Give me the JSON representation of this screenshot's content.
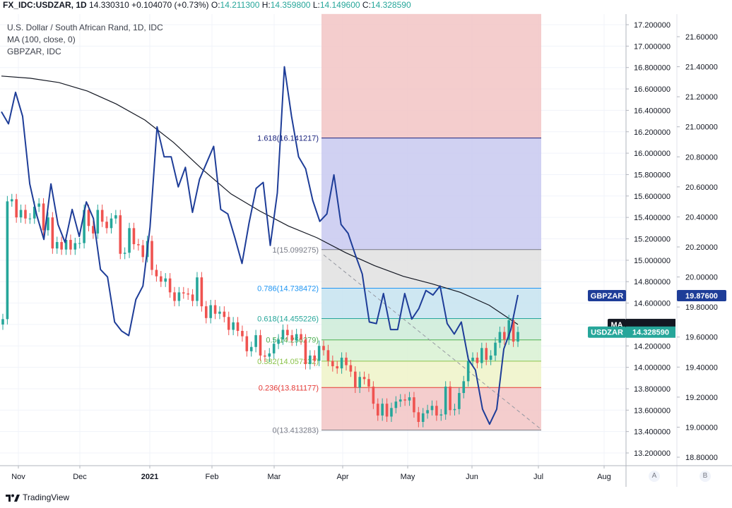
{
  "header": {
    "symbol": "FX_IDC:USDZAR, 1D",
    "last": "14.330310",
    "change": "+0.104070 (+0.73%)",
    "o_label": "O:",
    "o_value": "14.211300",
    "h_label": "H:",
    "h_value": "14.359800",
    "l_label": "L:",
    "l_value": "14.149600",
    "c_label": "C:",
    "c_value": "14.328590"
  },
  "legend": {
    "line1": "U.S. Dollar / South African Rand, 1D, IDC",
    "line2": "MA (100, close, 0)",
    "line3": "GBPZAR, IDC"
  },
  "footer": {
    "brand": "TradingView"
  },
  "scale_buttons": {
    "a": "A",
    "b": "B"
  },
  "colors": {
    "up": "#26a69a",
    "down": "#ef5350",
    "ma": "#131722",
    "gbpzar": "#1e3d98",
    "usdzar_label": "#26a69a",
    "gbpzar_label": "#1e3d98",
    "ma_label": "#131722"
  },
  "chart_data": {
    "type": "line",
    "title": "U.S. Dollar / South African Rand, 1D, IDC",
    "x_ticks": [
      "Nov",
      "Dec",
      "2021",
      "Feb",
      "Mar",
      "Apr",
      "May",
      "Jun",
      "Jul",
      "Aug"
    ],
    "axis_left": {
      "name": "USDZAR",
      "ylim": [
        13.1,
        17.3
      ],
      "ticks": [
        "17.200000",
        "17.000000",
        "16.800000",
        "16.600000",
        "16.400000",
        "16.200000",
        "16.000000",
        "15.800000",
        "15.600000",
        "15.400000",
        "15.200000",
        "15.000000",
        "14.800000",
        "14.600000",
        "14.400000",
        "14.200000",
        "14.000000",
        "13.800000",
        "13.600000",
        "13.400000",
        "13.200000"
      ]
    },
    "axis_right": {
      "name": "GBPZAR",
      "ylim": [
        18.75,
        21.7
      ],
      "ticks": [
        "21.60000",
        "21.40000",
        "21.20000",
        "21.00000",
        "20.80000",
        "20.60000",
        "20.40000",
        "20.20000",
        "20.00000",
        "19.80000",
        "19.60000",
        "19.40000",
        "19.20000",
        "19.00000",
        "18.80000"
      ]
    },
    "price_labels": [
      {
        "name": "GBPZAR",
        "value": "19.87600",
        "axis": "right"
      },
      {
        "name": "MA",
        "value": "",
        "axis": "left"
      },
      {
        "name": "USDZAR",
        "value": "14.328590",
        "axis": "left"
      }
    ],
    "fib_levels": [
      {
        "label": "0(13.413283)",
        "value": 13.413283,
        "line": "#787b86",
        "fill": "#f2c4c4"
      },
      {
        "label": "0.236(13.811177)",
        "value": 13.811177,
        "line": "#e53935",
        "fill": "#eef3c8"
      },
      {
        "label": "0.382(14.057332)",
        "value": 14.057332,
        "line": "#8bc34a",
        "fill": "#d8f1d2"
      },
      {
        "label": "0.5(14.256279)",
        "value": 14.256279,
        "line": "#4caf50",
        "fill": "#cdebd8"
      },
      {
        "label": "0.618(14.455226)",
        "value": 14.455226,
        "line": "#26a69a",
        "fill": "#c6e3f0"
      },
      {
        "label": "0.786(14.738472)",
        "value": 14.738472,
        "line": "#2196f3",
        "fill": "#e0e0e0"
      },
      {
        "label": "1(15.099275)",
        "value": 15.099275,
        "line": "#787b86",
        "fill": "#c8c9f0"
      },
      {
        "label": "1.618(16.141217)",
        "value": 16.141217,
        "line": "#1a237e",
        "fill": "#f2c4c4"
      }
    ],
    "fib_top_value": 17.3,
    "series": [
      {
        "name": "USDZAR",
        "candles_close": [
          14.45,
          15.55,
          15.57,
          15.4,
          15.47,
          15.39,
          15.39,
          15.5,
          15.53,
          15.28,
          15.4,
          15.11,
          15.17,
          15.1,
          15.19,
          15.1,
          15.16,
          15.16,
          15.47,
          15.32,
          15.25,
          15.47,
          15.36,
          15.3,
          15.39,
          15.42,
          15.06,
          15.07,
          15.3,
          15.15,
          15.14,
          15.03,
          15.18,
          14.91,
          14.85,
          14.8,
          14.83,
          14.7,
          14.62,
          14.7,
          14.69,
          14.68,
          14.62,
          14.84,
          14.57,
          14.46,
          14.58,
          14.5,
          14.52,
          14.47,
          14.35,
          14.42,
          14.34,
          14.29,
          14.15,
          14.19,
          14.3,
          14.11,
          14.1,
          14.13,
          14.22,
          14.26,
          14.35,
          14.3,
          14.25,
          14.31,
          14.26,
          14.03,
          14.11,
          14.06,
          14.2,
          14.16,
          14.06,
          14.01,
          13.99,
          14.09,
          14.02,
          13.96,
          13.81,
          13.91,
          13.89,
          13.82,
          13.66,
          13.55,
          13.66,
          13.54,
          13.62,
          13.68,
          13.7,
          13.69,
          13.72,
          13.58,
          13.49,
          13.57,
          13.6,
          13.64,
          13.55,
          13.56,
          13.82,
          13.6,
          13.61,
          13.76,
          13.87,
          14.06,
          14.09,
          14.04,
          14.18,
          14.07,
          14.11,
          14.23,
          14.33,
          14.26,
          14.44,
          14.24,
          14.33
        ]
      },
      {
        "name": "MA (100, close, 0)",
        "close_usdzar_scale": [
          16.72,
          16.7,
          16.66,
          16.58,
          16.46,
          16.31,
          16.1,
          15.85,
          15.62,
          15.46,
          15.32,
          15.21,
          15.07,
          14.95,
          14.85,
          14.78,
          14.7,
          14.58,
          14.4
        ]
      },
      {
        "name": "GBPZAR",
        "values": [
          21.1,
          21.02,
          21.23,
          21.07,
          20.62,
          20.41,
          20.25,
          20.62,
          20.35,
          20.23,
          20.45,
          20.27,
          20.5,
          20.39,
          20.05,
          20.0,
          19.7,
          19.64,
          19.61,
          19.85,
          19.94,
          20.33,
          21.0,
          20.8,
          20.8,
          20.6,
          20.73,
          20.43,
          20.65,
          20.76,
          20.87,
          20.45,
          20.42,
          20.26,
          20.09,
          20.36,
          20.59,
          20.63,
          20.21,
          20.56,
          21.4,
          21.07,
          20.8,
          20.72,
          20.51,
          20.37,
          20.42,
          20.68,
          20.35,
          20.29,
          20.15,
          20.02,
          19.7,
          19.69,
          19.89,
          19.65,
          19.65,
          19.89,
          19.72,
          19.79,
          19.91,
          19.88,
          19.94,
          19.69,
          19.62,
          19.7,
          19.45,
          19.38,
          19.12,
          19.02,
          19.12,
          19.52,
          19.65,
          19.88
        ]
      }
    ]
  }
}
